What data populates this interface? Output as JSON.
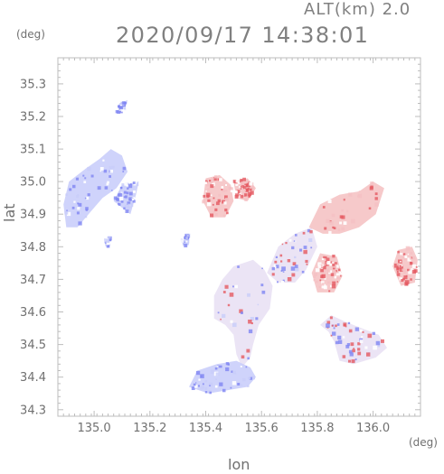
{
  "header": {
    "altitude_label": "ALT(km) 2.0",
    "timestamp": "2020/09/17 14:38:01"
  },
  "axes": {
    "x_label": "lon",
    "y_label": "lat",
    "x_unit": "(deg)",
    "y_unit": "(deg)",
    "x_range": [
      134.87,
      136.17
    ],
    "y_range": [
      34.28,
      35.38
    ],
    "x_ticks": [
      {
        "value": 135.0,
        "label": "135.0"
      },
      {
        "value": 135.2,
        "label": "135.2"
      },
      {
        "value": 135.4,
        "label": "135.4"
      },
      {
        "value": 135.6,
        "label": "135.6"
      },
      {
        "value": 135.8,
        "label": "135.8"
      },
      {
        "value": 136.0,
        "label": "136.0"
      }
    ],
    "y_ticks": [
      {
        "value": 34.3,
        "label": "34.3"
      },
      {
        "value": 34.4,
        "label": "34.4"
      },
      {
        "value": 34.5,
        "label": "34.5"
      },
      {
        "value": 34.6,
        "label": "34.6"
      },
      {
        "value": 34.7,
        "label": "34.7"
      },
      {
        "value": 34.8,
        "label": "34.8"
      },
      {
        "value": 34.9,
        "label": "34.9"
      },
      {
        "value": 35.0,
        "label": "35.0"
      },
      {
        "value": 35.1,
        "label": "35.1"
      },
      {
        "value": 35.2,
        "label": "35.2"
      },
      {
        "value": 35.3,
        "label": "35.3"
      }
    ]
  },
  "colors": {
    "frame": "#bdbdbd",
    "tick": "#bdbdbd",
    "blue_tone": "#c8cdfa",
    "blue_strong": "#7f86f2",
    "red_tone": "#f5c1c3",
    "red_strong": "#e55a61",
    "speckle_white": "#ffffff"
  },
  "regions": [
    {
      "name": "west-blue-cluster",
      "tone": "blue",
      "points": [
        [
          134.9,
          34.86
        ],
        [
          134.89,
          34.93
        ],
        [
          134.91,
          35.0
        ],
        [
          134.97,
          35.04
        ],
        [
          135.02,
          35.07
        ],
        [
          135.06,
          35.1
        ],
        [
          135.1,
          35.08
        ],
        [
          135.12,
          35.03
        ],
        [
          135.08,
          34.98
        ],
        [
          135.03,
          34.95
        ],
        [
          134.99,
          34.91
        ],
        [
          134.94,
          34.86
        ]
      ]
    },
    {
      "name": "west-small-blue",
      "tone": "blue",
      "points": [
        [
          135.13,
          34.9
        ],
        [
          135.15,
          34.96
        ],
        [
          135.16,
          35.0
        ],
        [
          135.1,
          34.99
        ],
        [
          135.07,
          34.94
        ]
      ]
    },
    {
      "name": "north-small-speckle",
      "tone": "blue",
      "points": [
        [
          135.09,
          35.24
        ],
        [
          135.12,
          35.25
        ],
        [
          135.11,
          35.22
        ],
        [
          135.08,
          35.21
        ]
      ]
    },
    {
      "name": "west-isolated-blue",
      "tone": "blue",
      "points": [
        [
          135.04,
          34.82
        ],
        [
          135.06,
          34.83
        ],
        [
          135.05,
          34.8
        ]
      ]
    },
    {
      "name": "center-blue-1",
      "tone": "blue",
      "points": [
        [
          135.31,
          34.82
        ],
        [
          135.34,
          34.84
        ],
        [
          135.33,
          34.8
        ]
      ]
    },
    {
      "name": "center-north-red",
      "tone": "red",
      "points": [
        [
          135.4,
          35.01
        ],
        [
          135.45,
          35.02
        ],
        [
          135.49,
          34.99
        ],
        [
          135.5,
          34.94
        ],
        [
          135.47,
          34.89
        ],
        [
          135.42,
          34.89
        ],
        [
          135.39,
          34.94
        ]
      ]
    },
    {
      "name": "center-north-red-2",
      "tone": "red",
      "points": [
        [
          135.5,
          35.0
        ],
        [
          135.55,
          35.01
        ],
        [
          135.58,
          34.98
        ],
        [
          135.55,
          34.94
        ],
        [
          135.51,
          34.95
        ]
      ]
    },
    {
      "name": "central-mixed-cluster",
      "tone": "mixed",
      "points": [
        [
          135.43,
          34.58
        ],
        [
          135.43,
          34.65
        ],
        [
          135.46,
          34.7
        ],
        [
          135.5,
          34.74
        ],
        [
          135.57,
          34.76
        ],
        [
          135.61,
          34.73
        ],
        [
          135.64,
          34.68
        ],
        [
          135.63,
          34.61
        ],
        [
          135.59,
          34.56
        ],
        [
          135.57,
          34.5
        ],
        [
          135.56,
          34.46
        ],
        [
          135.53,
          34.43
        ],
        [
          135.51,
          34.47
        ],
        [
          135.5,
          34.53
        ],
        [
          135.47,
          34.56
        ]
      ]
    },
    {
      "name": "lower-blue-arm",
      "tone": "blue",
      "points": [
        [
          135.34,
          34.37
        ],
        [
          135.37,
          34.42
        ],
        [
          135.44,
          34.44
        ],
        [
          135.51,
          34.45
        ],
        [
          135.56,
          34.43
        ],
        [
          135.58,
          34.4
        ],
        [
          135.55,
          34.37
        ],
        [
          135.48,
          34.36
        ],
        [
          135.41,
          34.35
        ]
      ]
    },
    {
      "name": "center-east-mixed",
      "tone": "mixed",
      "points": [
        [
          135.62,
          34.72
        ],
        [
          135.66,
          34.8
        ],
        [
          135.72,
          34.84
        ],
        [
          135.78,
          34.86
        ],
        [
          135.8,
          34.8
        ],
        [
          135.76,
          34.73
        ],
        [
          135.72,
          34.69
        ],
        [
          135.66,
          34.69
        ]
      ]
    },
    {
      "name": "east-red-upper",
      "tone": "red",
      "points": [
        [
          135.77,
          34.86
        ],
        [
          135.81,
          34.93
        ],
        [
          135.88,
          34.96
        ],
        [
          135.95,
          34.97
        ],
        [
          136.0,
          35.0
        ],
        [
          136.04,
          34.98
        ],
        [
          136.01,
          34.9
        ],
        [
          135.95,
          34.86
        ],
        [
          135.88,
          34.84
        ],
        [
          135.82,
          34.84
        ]
      ]
    },
    {
      "name": "east-red-middle",
      "tone": "red",
      "points": [
        [
          135.78,
          34.72
        ],
        [
          135.81,
          34.78
        ],
        [
          135.87,
          34.77
        ],
        [
          135.89,
          34.71
        ],
        [
          135.86,
          34.66
        ],
        [
          135.8,
          34.66
        ]
      ]
    },
    {
      "name": "far-east-red",
      "tone": "red",
      "points": [
        [
          136.07,
          34.74
        ],
        [
          136.09,
          34.79
        ],
        [
          136.14,
          34.8
        ],
        [
          136.16,
          34.76
        ],
        [
          136.15,
          34.69
        ],
        [
          136.1,
          34.68
        ]
      ]
    },
    {
      "name": "southeast-mixed",
      "tone": "mixed",
      "points": [
        [
          135.81,
          34.56
        ],
        [
          135.84,
          34.54
        ],
        [
          135.86,
          34.51
        ],
        [
          135.88,
          34.45
        ],
        [
          135.93,
          34.44
        ],
        [
          136.01,
          34.46
        ],
        [
          136.05,
          34.49
        ],
        [
          136.02,
          34.53
        ],
        [
          135.96,
          34.55
        ],
        [
          135.9,
          34.57
        ],
        [
          135.85,
          34.59
        ]
      ]
    }
  ],
  "speckles": {
    "count": 620,
    "seed": 37
  }
}
